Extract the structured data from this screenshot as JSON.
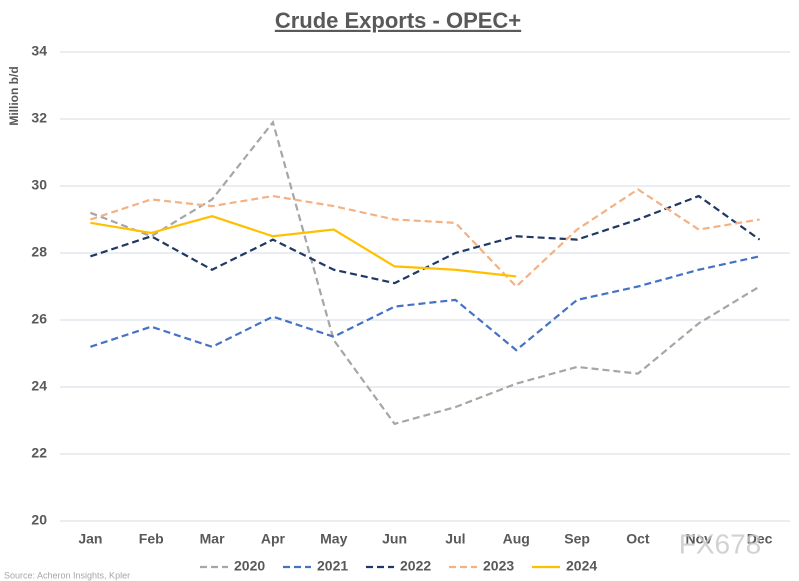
{
  "chart_data": {
    "type": "line",
    "title": "Crude Exports - OPEC+",
    "y_label": "Million b/d",
    "source": "Source: Acheron Insights, Kpler",
    "watermark": "FX678",
    "categories": [
      "Jan",
      "Feb",
      "Mar",
      "Apr",
      "May",
      "Jun",
      "Jul",
      "Aug",
      "Sep",
      "Oct",
      "Nov",
      "Dec"
    ],
    "ylim": [
      20,
      34
    ],
    "yticks": [
      20,
      22,
      24,
      26,
      28,
      30,
      32,
      34
    ],
    "grid": true,
    "legend": "bottom",
    "series": [
      {
        "name": "2020",
        "color": "#a6a6a6",
        "dashed": true,
        "values": [
          29.2,
          28.5,
          29.6,
          31.9,
          25.4,
          22.9,
          23.4,
          24.1,
          24.6,
          24.4,
          25.9,
          27.0
        ]
      },
      {
        "name": "2021",
        "color": "#4472c4",
        "dashed": true,
        "values": [
          25.2,
          25.8,
          25.2,
          26.1,
          25.5,
          26.4,
          26.6,
          25.1,
          26.6,
          27.0,
          27.5,
          27.9
        ]
      },
      {
        "name": "2022",
        "color": "#1f3864",
        "dashed": true,
        "values": [
          27.9,
          28.5,
          27.5,
          28.4,
          27.5,
          27.1,
          28.0,
          28.5,
          28.4,
          29.0,
          29.7,
          28.4
        ]
      },
      {
        "name": "2023",
        "color": "#f4b183",
        "dashed": true,
        "values": [
          29.0,
          29.6,
          29.4,
          29.7,
          29.4,
          29.0,
          28.9,
          27.0,
          28.7,
          29.9,
          28.7,
          29.0
        ]
      },
      {
        "name": "2024",
        "color": "#ffc000",
        "dashed": false,
        "values": [
          28.9,
          28.6,
          29.1,
          28.5,
          28.7,
          27.6,
          27.5,
          27.3,
          null,
          null,
          null,
          null
        ]
      }
    ]
  }
}
